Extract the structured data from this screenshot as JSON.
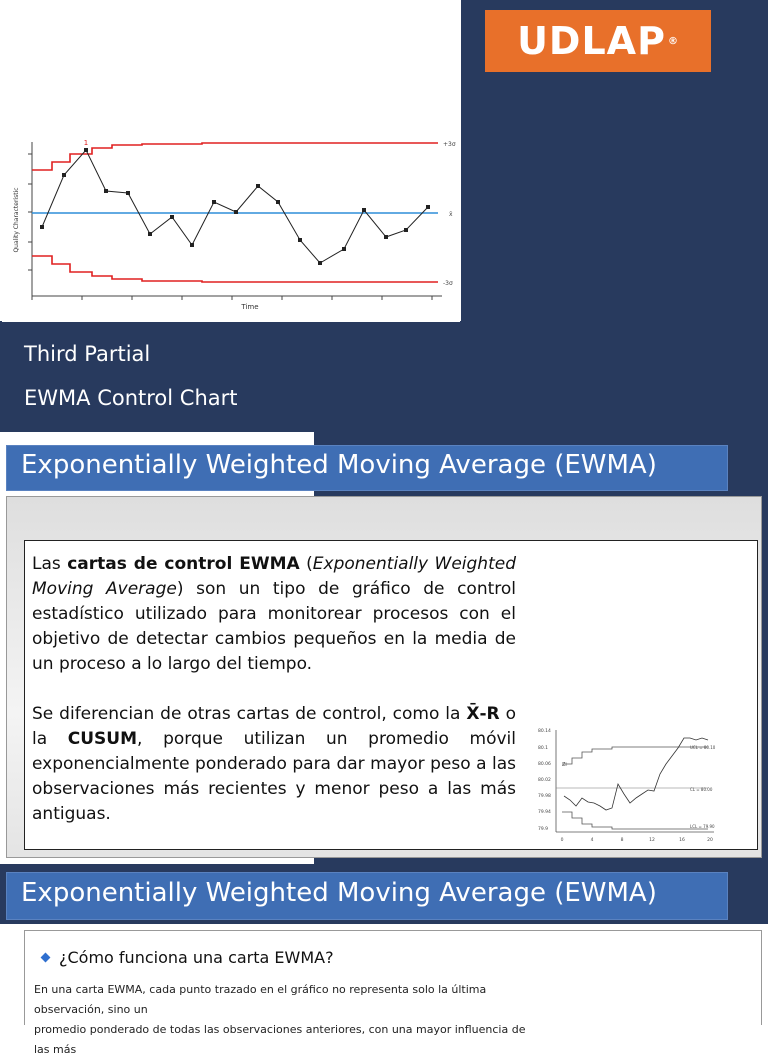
{
  "slide1": {
    "logo_text": "UDLAP",
    "logo_mark": "®",
    "line1": "Third Partial",
    "line2": "EWMA Control Chart",
    "chart_labels": {
      "ylabel": "Quality Characteristic",
      "xlabel": "Time",
      "upper": "+3σ",
      "center": "x̄",
      "lower": "-3σ",
      "flag": "1"
    },
    "colors": {
      "navy": "#283a5e",
      "orange": "#e8702a",
      "limit": "#e02020",
      "center": "#2f8ed8"
    }
  },
  "slide2": {
    "title": "Exponentially Weighted Moving Average (EWMA)",
    "p1_a": "Las ",
    "p1_b": "cartas de control EWMA",
    "p1_c": " (",
    "p1_d": "Exponentially Weighted Moving Average",
    "p1_e": ") son un tipo de gráfico de control estadístico utilizado para monitorear procesos con el objetivo de detectar cambios pequeños en la media de un proceso a lo largo del tiempo.",
    "p2_a": "Se diferencian de otras cartas de control, como la ",
    "p2_b": "X̄-R",
    "p2_c": " o la ",
    "p2_d": "CUSUM",
    "p2_e": ", porque utilizan un promedio móvil exponencialmente ponderado para dar mayor peso a las observaciones más recientes y menor peso a las más antiguas.",
    "chart_labels": {
      "y_ticks": [
        "80.14",
        "80.1",
        "80.06",
        "80.02",
        "79.98",
        "79.94",
        "79.9"
      ],
      "x_ticks": [
        "0",
        "4",
        "8",
        "12",
        "16",
        "20"
      ],
      "ucl": "UCL = 80.10",
      "cl": "CL = 80.00",
      "lcl": "LCL = 79.90",
      "axis": "Zi"
    }
  },
  "slide3": {
    "title": "Exponentially Weighted Moving Average (EWMA)",
    "heading": "¿Cómo funciona una carta EWMA?",
    "body_line1": "En una carta EWMA, cada punto trazado en el gráfico no representa solo la última observación, sino un",
    "body_line2": "promedio ponderado de todas las observaciones anteriores, con una mayor influencia de las más"
  }
}
